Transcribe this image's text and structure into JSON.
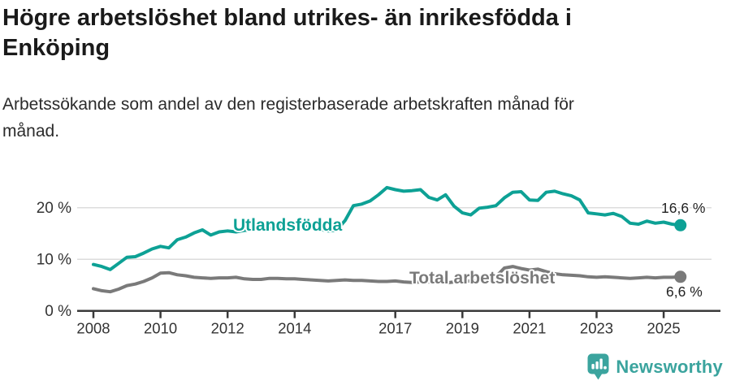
{
  "header": {
    "title": "Högre arbetslöshet bland utrikes- än inrikesfödda i\nEnköping",
    "subtitle": "Arbetssökande som andel av den registerbaserade arbetskraften månad för\nmånad."
  },
  "chart_data": {
    "type": "line",
    "title": "Högre arbetslöshet bland utrikes- än inrikesfödda i Enköping",
    "subtitle": "Arbetssökande som andel av den registerbaserade arbetskraften månad för månad.",
    "xlabel": "",
    "ylabel": "",
    "grid": "horizontal-gridlines-at-10-and-20",
    "legend_position": "inline-labels-on-lines",
    "xlim": [
      2007.5,
      2026.7
    ],
    "ylim": [
      0,
      26
    ],
    "x_ticks": [
      {
        "value": 2008,
        "label": "2008"
      },
      {
        "value": 2010,
        "label": "2010"
      },
      {
        "value": 2012,
        "label": "2012"
      },
      {
        "value": 2014,
        "label": "2014"
      },
      {
        "value": 2017,
        "label": "2017"
      },
      {
        "value": 2019,
        "label": "2019"
      },
      {
        "value": 2021,
        "label": "2021"
      },
      {
        "value": 2023,
        "label": "2023"
      },
      {
        "value": 2025,
        "label": "2025"
      }
    ],
    "y_ticks": [
      {
        "value": 0,
        "label": "0 %"
      },
      {
        "value": 10,
        "label": "10 %"
      },
      {
        "value": 20,
        "label": "20 %"
      }
    ],
    "x": [
      2008,
      2008.25,
      2008.5,
      2008.75,
      2009,
      2009.25,
      2009.5,
      2009.75,
      2010,
      2010.25,
      2010.5,
      2010.75,
      2011,
      2011.25,
      2011.5,
      2011.75,
      2012,
      2012.25,
      2012.5,
      2012.75,
      2013,
      2013.25,
      2013.5,
      2013.75,
      2014,
      2014.25,
      2014.5,
      2014.75,
      2015,
      2015.25,
      2015.5,
      2015.75,
      2016,
      2016.25,
      2016.5,
      2016.75,
      2017,
      2017.25,
      2017.5,
      2017.75,
      2018,
      2018.25,
      2018.5,
      2018.75,
      2019,
      2019.25,
      2019.5,
      2019.75,
      2020,
      2020.25,
      2020.5,
      2020.75,
      2021,
      2021.25,
      2021.5,
      2021.75,
      2022,
      2022.25,
      2022.5,
      2022.75,
      2023,
      2023.25,
      2023.5,
      2023.75,
      2024,
      2024.25,
      2024.5,
      2024.75,
      2025,
      2025.25,
      2025.5
    ],
    "series": [
      {
        "name": "Utlandsfödda",
        "color": "#0da195",
        "end_label": "16,6 %",
        "end_value": 16.6,
        "values": [
          9.0,
          8.6,
          8.0,
          9.2,
          10.4,
          10.5,
          11.2,
          12.0,
          12.5,
          12.2,
          13.8,
          14.3,
          15.1,
          15.7,
          14.7,
          15.3,
          15.5,
          15.3,
          15.6,
          15.7,
          16.3,
          16.0,
          16.2,
          16.5,
          16.1,
          16.3,
          16.2,
          15.8,
          15.5,
          15.6,
          17.5,
          20.4,
          20.7,
          21.3,
          22.5,
          23.9,
          23.5,
          23.2,
          23.3,
          23.5,
          22.0,
          21.5,
          22.5,
          20.3,
          19.0,
          18.6,
          19.9,
          20.1,
          20.4,
          21.9,
          23.0,
          23.1,
          21.5,
          21.4,
          23.0,
          23.2,
          22.7,
          22.3,
          21.5,
          19.0,
          18.8,
          18.6,
          18.9,
          18.3,
          17.0,
          16.8,
          17.4,
          17.0,
          17.2,
          16.8,
          16.6
        ]
      },
      {
        "name": "Total arbetslöshet",
        "color": "#7a7a7a",
        "end_label": "6,6 %",
        "end_value": 6.6,
        "values": [
          4.3,
          3.9,
          3.7,
          4.2,
          4.9,
          5.2,
          5.7,
          6.4,
          7.3,
          7.4,
          7.0,
          6.8,
          6.5,
          6.4,
          6.3,
          6.4,
          6.4,
          6.5,
          6.2,
          6.1,
          6.1,
          6.3,
          6.3,
          6.2,
          6.2,
          6.1,
          6.0,
          5.9,
          5.8,
          5.9,
          6.0,
          5.9,
          5.9,
          5.8,
          5.7,
          5.7,
          5.8,
          5.6,
          5.5,
          5.6,
          5.6,
          5.5,
          5.4,
          5.6,
          5.7,
          5.8,
          5.9,
          6.2,
          6.6,
          8.3,
          8.6,
          8.2,
          7.9,
          8.1,
          7.6,
          7.2,
          7.0,
          6.9,
          6.8,
          6.6,
          6.5,
          6.6,
          6.5,
          6.4,
          6.3,
          6.4,
          6.5,
          6.4,
          6.5,
          6.5,
          6.6
        ]
      }
    ]
  },
  "colors": {
    "accent_teal": "#0da195",
    "series_gray": "#7a7a7a",
    "gridline": "#dcdcdc",
    "axis": "#3a3a3a",
    "tick_text": "#333333",
    "logo_teal": "#3ba49e"
  },
  "footer": {
    "brand": "Newsworthy",
    "logo_icon": "bar-chart-speech-bubble-icon"
  }
}
